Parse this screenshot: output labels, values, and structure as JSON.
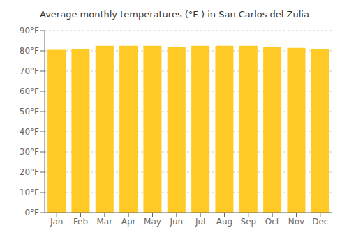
{
  "chart_data": {
    "type": "bar",
    "title": "Average monthly temperatures (°F ) in San Carlos del Zulia",
    "categories": [
      "Jan",
      "Feb",
      "Mar",
      "Apr",
      "May",
      "Jun",
      "Jul",
      "Aug",
      "Sep",
      "Oct",
      "Nov",
      "Dec"
    ],
    "values": [
      80.5,
      81.0,
      82.5,
      82.5,
      82.5,
      82.0,
      82.5,
      82.5,
      82.5,
      82.0,
      81.5,
      81.0
    ],
    "color": "#FFC926",
    "ylim": [
      0,
      90
    ],
    "yticks": [
      {
        "value": 0,
        "label": "0°F"
      },
      {
        "value": 10,
        "label": "10°F"
      },
      {
        "value": 20,
        "label": "20°F"
      },
      {
        "value": 30,
        "label": "30°F"
      },
      {
        "value": 40,
        "label": "40°F"
      },
      {
        "value": 50,
        "label": "50°F"
      },
      {
        "value": 60,
        "label": "60°F"
      },
      {
        "value": 70,
        "label": "70°F"
      },
      {
        "value": 80,
        "label": "80°F"
      },
      {
        "value": 90,
        "label": "90°F"
      }
    ],
    "grid": true
  }
}
